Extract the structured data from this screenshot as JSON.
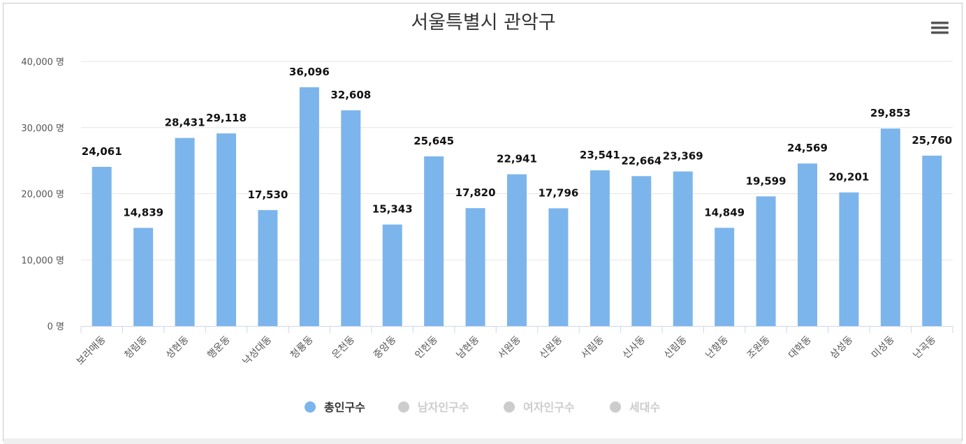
{
  "chart_data": {
    "type": "bar",
    "title": "서울특별시 관악구",
    "categories": [
      "보라매동",
      "청림동",
      "성현동",
      "행운동",
      "낙성대동",
      "청룡동",
      "은천동",
      "중앙동",
      "인헌동",
      "남현동",
      "서원동",
      "신원동",
      "서림동",
      "신사동",
      "신림동",
      "난향동",
      "조원동",
      "대학동",
      "삼성동",
      "미성동",
      "난곡동"
    ],
    "series": [
      {
        "name": "총인구수",
        "values": [
          24061,
          14839,
          28431,
          29118,
          17530,
          36096,
          32608,
          15343,
          25645,
          17820,
          22941,
          17796,
          23541,
          22664,
          23369,
          14849,
          19599,
          24569,
          20201,
          29853,
          25760
        ],
        "visible": true
      }
    ],
    "data_labels": [
      "24,061",
      "14,839",
      "28,431",
      "29,118",
      "17,530",
      "36,096",
      "32,608",
      "15,343",
      "25,645",
      "17,820",
      "22,941",
      "17,796",
      "23,541",
      "22,664",
      "23,369",
      "14,849",
      "19,599",
      "24,569",
      "20,201",
      "29,853",
      "25,760"
    ],
    "ylim": [
      0,
      40000
    ],
    "yticks": [
      0,
      10000,
      20000,
      30000,
      40000
    ],
    "ytick_labels": [
      "0 명",
      "10,000 명",
      "20,000 명",
      "30,000 명",
      "40,000 명"
    ],
    "grid": true,
    "legend": {
      "position": "bottom-center",
      "items": [
        {
          "label": "총인구수",
          "active": true
        },
        {
          "label": "남자인구수",
          "active": false
        },
        {
          "label": "여자인구수",
          "active": false
        },
        {
          "label": "세대수",
          "active": false
        }
      ]
    }
  },
  "colors": {
    "bar": "#7cb5ec",
    "grid": "#e6e6e6",
    "legend_active_text": "#333333",
    "legend_inactive": "#cccccc",
    "menu_icon": "#555555"
  },
  "icons": {
    "menu": "hamburger-menu-icon"
  }
}
